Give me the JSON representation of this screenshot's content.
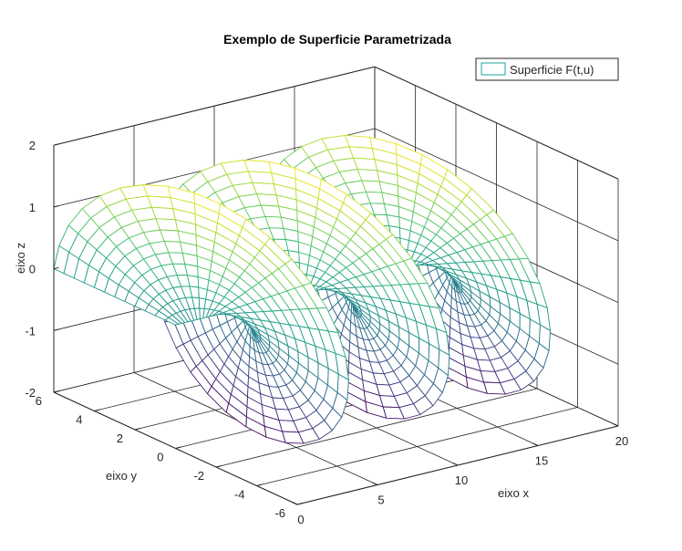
{
  "chart_data": {
    "type": "surface",
    "title": "Exemplo de Superficie Parametrizada",
    "xlabel": "eixo x",
    "ylabel": "eixo y",
    "zlabel": "eixo z",
    "legend": {
      "label": "Superficie F(t,u)",
      "position": "top-right"
    },
    "colormap": "viridis",
    "xlim": [
      0,
      20
    ],
    "ylim": [
      -6,
      6
    ],
    "zlim": [
      -2,
      2
    ],
    "xticks": [
      0,
      5,
      10,
      15,
      20
    ],
    "yticks": [
      -6,
      -4,
      -2,
      0,
      2,
      4,
      6
    ],
    "zticks": [
      -2,
      -1,
      0,
      1,
      2
    ],
    "grid": true,
    "surface": {
      "description": "helicoidal surface, x = t, y = u*cos(t), z = u*sin(t)",
      "t_range": [
        0,
        18.85
      ],
      "u_range": [
        0,
        6
      ],
      "t_samples": 100,
      "u_samples": 13
    }
  }
}
